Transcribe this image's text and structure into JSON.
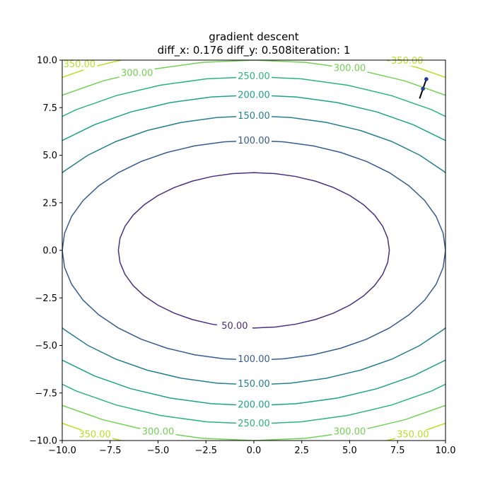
{
  "chart_data": {
    "type": "contour",
    "title": "gradient descent",
    "subtitle": "diff_x: 0.176  diff_y: 0.508iteration: 1",
    "xlabel": "",
    "ylabel": "",
    "xlim": [
      -10,
      10
    ],
    "ylim": [
      -10,
      10
    ],
    "x_ticks": [
      -10,
      -7.5,
      -5,
      -2.5,
      0,
      2.5,
      5,
      7.5,
      10
    ],
    "x_tick_labels": [
      "−10.0",
      "−7.5",
      "−5.0",
      "−2.5",
      "0.0",
      "2.5",
      "5.0",
      "7.5",
      "10.0"
    ],
    "y_ticks": [
      -10,
      -7.5,
      -5,
      -2.5,
      0,
      2.5,
      5,
      7.5,
      10
    ],
    "y_tick_labels": [
      "−10.0",
      "−7.5",
      "−5.0",
      "−2.5",
      "0.0",
      "2.5",
      "5.0",
      "7.5",
      "10.0"
    ],
    "function": "f(x, y) = x^2 + 3 y^2",
    "levels": [
      {
        "value": 50,
        "label": "50.00",
        "color": "#46317e"
      },
      {
        "value": 100,
        "label": "100.00",
        "color": "#365c8d"
      },
      {
        "value": 150,
        "label": "150.00",
        "color": "#277f8e"
      },
      {
        "value": 200,
        "label": "200.00",
        "color": "#1fa187"
      },
      {
        "value": 250,
        "label": "250.00",
        "color": "#2db27d"
      },
      {
        "value": 300,
        "label": "300.00",
        "color": "#74d055"
      },
      {
        "value": 350,
        "label": "350.00",
        "color": "#b8de29"
      }
    ],
    "contour_labels": [
      {
        "level": 50,
        "label": "50.00",
        "x": -1.0,
        "y": -4.0
      },
      {
        "level": 100,
        "label": "100.00",
        "x": 0.0,
        "y": 5.75
      },
      {
        "level": 100,
        "label": "100.00",
        "x": 0.0,
        "y": -5.75
      },
      {
        "level": 150,
        "label": "150.00",
        "x": 0.0,
        "y": 7.05
      },
      {
        "level": 150,
        "label": "150.00",
        "x": 0.0,
        "y": -7.05
      },
      {
        "level": 200,
        "label": "200.00",
        "x": 0.0,
        "y": 8.15
      },
      {
        "level": 200,
        "label": "200.00",
        "x": 0.0,
        "y": -8.15
      },
      {
        "level": 250,
        "label": "250.00",
        "x": 0.0,
        "y": 9.12
      },
      {
        "level": 250,
        "label": "250.00",
        "x": 0.0,
        "y": -9.12
      },
      {
        "level": 300,
        "label": "300.00",
        "x": -6.1,
        "y": 9.3
      },
      {
        "level": 300,
        "label": "300.00",
        "x": 5.0,
        "y": 9.55
      },
      {
        "level": 300,
        "label": "300.00",
        "x": -5.0,
        "y": -9.55
      },
      {
        "level": 300,
        "label": "300.00",
        "x": 5.0,
        "y": -9.55
      },
      {
        "level": 350,
        "label": "350.00",
        "x": -9.1,
        "y": 9.75
      },
      {
        "level": 350,
        "label": "350.00",
        "x": 8.0,
        "y": 9.95
      },
      {
        "level": 350,
        "label": "350.00",
        "x": -8.3,
        "y": -9.7
      },
      {
        "level": 350,
        "label": "350.00",
        "x": 8.3,
        "y": -9.7
      }
    ],
    "path": {
      "color": "#000000",
      "marker_color": "#1f3a8f",
      "points": [
        [
          9.0,
          9.0
        ],
        [
          8.824,
          8.492
        ]
      ],
      "segment_end": [
        8.65,
        7.98
      ]
    }
  }
}
